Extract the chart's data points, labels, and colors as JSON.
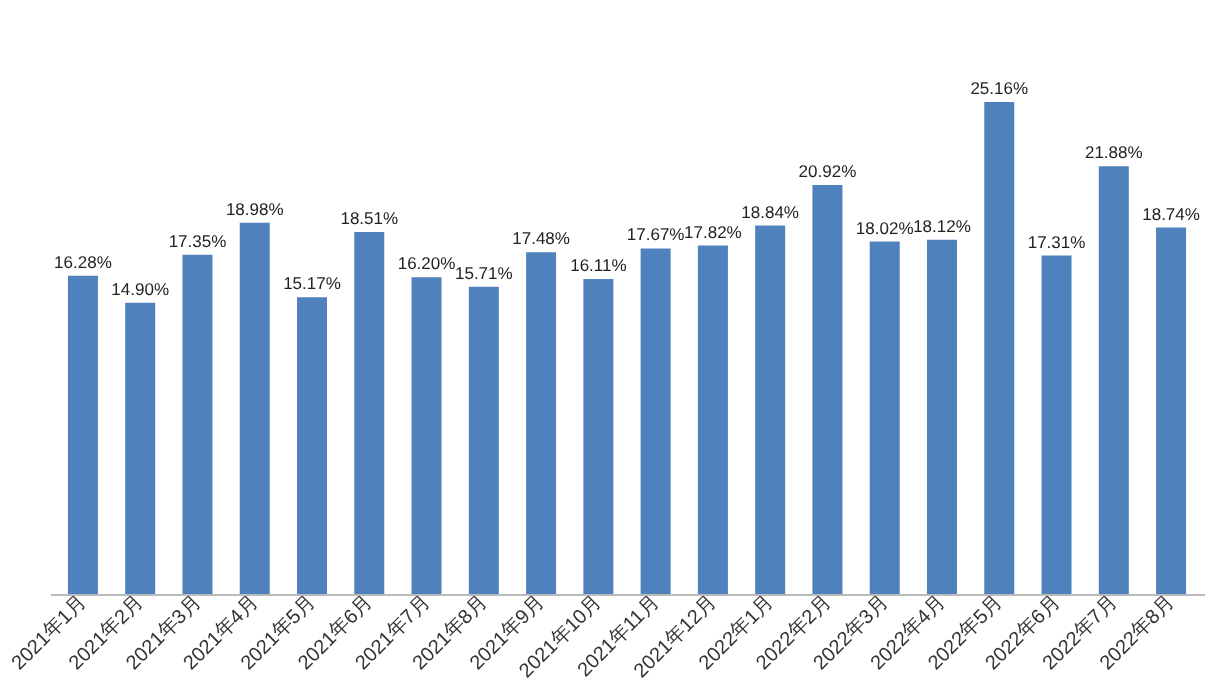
{
  "chart_data": {
    "type": "bar",
    "categories": [
      "2021年1月",
      "2021年2月",
      "2021年3月",
      "2021年4月",
      "2021年5月",
      "2021年6月",
      "2021年7月",
      "2021年8月",
      "2021年9月",
      "2021年10月",
      "2021年11月",
      "2021年12月",
      "2022年1月",
      "2022年2月",
      "2022年3月",
      "2022年4月",
      "2022年5月",
      "2022年6月",
      "2022年7月",
      "2022年8月"
    ],
    "values": [
      16.28,
      14.9,
      17.35,
      18.98,
      15.17,
      18.51,
      16.2,
      15.71,
      17.48,
      16.11,
      17.67,
      17.82,
      18.84,
      20.92,
      18.02,
      18.12,
      25.16,
      17.31,
      21.88,
      18.74
    ],
    "value_labels": [
      "16.28%",
      "14.90%",
      "17.35%",
      "18.98%",
      "15.17%",
      "18.51%",
      "16.20%",
      "15.71%",
      "17.48%",
      "16.11%",
      "17.67%",
      "17.82%",
      "18.84%",
      "20.92%",
      "18.02%",
      "18.12%",
      "25.16%",
      "17.31%",
      "21.88%",
      "18.74%"
    ],
    "color": "#4f81bd",
    "grid": false
  }
}
